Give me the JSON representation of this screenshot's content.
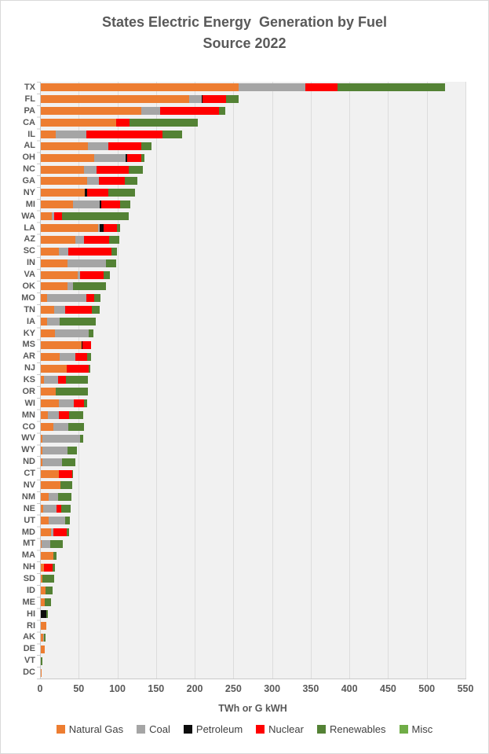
{
  "title_lines": "States Electric Energy  Generation by Fuel\nSource 2022",
  "colors": {
    "text": "#595959",
    "plot_background": "#f1f1f1",
    "gridline": "#dcdcdc",
    "axis_line": "#c9c9c9"
  },
  "chart_data": {
    "type": "bar",
    "orientation": "horizontal",
    "stacked": true,
    "title": "States Electric Energy  Generation by Fuel Source 2022",
    "xlabel": "TWh or G kWH",
    "ylabel": "",
    "xlim": [
      0,
      550
    ],
    "x_ticks": [
      0,
      50,
      100,
      150,
      200,
      250,
      300,
      350,
      400,
      450,
      500,
      550
    ],
    "grid": true,
    "legend_position": "bottom",
    "categories": [
      "TX",
      "FL",
      "PA",
      "CA",
      "IL",
      "AL",
      "OH",
      "NC",
      "GA",
      "NY",
      "MI",
      "WA",
      "LA",
      "AZ",
      "SC",
      "IN",
      "VA",
      "OK",
      "MO",
      "TN",
      "IA",
      "KY",
      "MS",
      "AR",
      "NJ",
      "KS",
      "OR",
      "WI",
      "MN",
      "CO",
      "WV",
      "WY",
      "ND",
      "CT",
      "NV",
      "NM",
      "NE",
      "UT",
      "MD",
      "MT",
      "MA",
      "NH",
      "SD",
      "ID",
      "ME",
      "HI",
      "RI",
      "AK",
      "DE",
      "VT",
      "DC"
    ],
    "series": [
      {
        "name": "Natural Gas",
        "color": "#ED7D31",
        "values": [
          256,
          192,
          130,
          97,
          19,
          61,
          69,
          56,
          60,
          57,
          42,
          14,
          74,
          45,
          23,
          34,
          48,
          34,
          8,
          17,
          8,
          18,
          53,
          24,
          33,
          4,
          19,
          23,
          9,
          16,
          2,
          2,
          2,
          23,
          25,
          10,
          3,
          10,
          13,
          1,
          16,
          4,
          2,
          6,
          5,
          0,
          7,
          3,
          5,
          0,
          0.1
        ]
      },
      {
        "name": "Coal",
        "color": "#A5A5A5",
        "values": [
          86,
          16,
          24,
          0,
          40,
          26,
          41,
          16,
          15,
          0,
          34,
          3,
          2,
          11,
          13,
          50,
          3,
          8,
          51,
          14,
          16,
          44,
          0,
          21,
          0,
          18,
          0,
          20,
          14,
          20,
          49,
          33,
          25,
          0,
          0,
          12,
          17,
          21,
          3,
          11,
          0,
          0,
          0,
          0,
          0,
          0,
          0,
          1,
          0,
          0,
          0
        ]
      },
      {
        "name": "Petroleum",
        "color": "#0D0D0D",
        "values": [
          0,
          1,
          0,
          0,
          0,
          0,
          2,
          0,
          0,
          3,
          2,
          0,
          5,
          0,
          0,
          0,
          0,
          0,
          0,
          0,
          0,
          0,
          1,
          0,
          0,
          0,
          0,
          0,
          0,
          0,
          0,
          0,
          0,
          0,
          0,
          0,
          0,
          0,
          0,
          0,
          0,
          0,
          0,
          0,
          0,
          7,
          0,
          0,
          0,
          0,
          0
        ]
      },
      {
        "name": "Nuclear",
        "color": "#FF0000",
        "values": [
          42,
          30,
          76,
          18,
          98,
          43,
          18,
          42,
          34,
          27,
          25,
          10,
          17,
          32,
          55,
          0,
          30,
          0,
          10,
          35,
          0,
          0,
          11,
          15,
          29,
          10,
          0,
          13,
          14,
          0,
          0,
          0,
          0,
          18,
          0,
          0,
          6,
          0,
          17,
          0,
          0,
          11,
          0,
          0,
          0,
          0,
          0,
          0,
          0,
          0,
          0
        ]
      },
      {
        "name": "Renewables",
        "color": "#548235",
        "values": [
          139,
          17,
          9,
          88,
          26,
          13,
          4,
          18,
          16,
          35,
          13,
          87,
          4,
          14,
          7,
          13,
          8,
          42,
          8,
          10,
          47,
          6,
          0,
          5,
          2,
          29,
          42,
          4,
          18,
          20,
          4,
          12,
          18,
          1,
          16,
          18,
          13,
          7,
          4,
          16,
          4,
          3,
          15,
          9,
          8,
          2,
          0,
          2,
          0,
          2,
          0
        ]
      },
      {
        "name": "Misc",
        "color": "#70AD47",
        "values": [
          0,
          0,
          0,
          0,
          0,
          0,
          0,
          0,
          0,
          0,
          0,
          0,
          0,
          0,
          0,
          0,
          0,
          0,
          0,
          0,
          0,
          0,
          0,
          0,
          0,
          0,
          0,
          0,
          0,
          0,
          0,
          0,
          0,
          0,
          0,
          0,
          0,
          0,
          0,
          0,
          0,
          0,
          0,
          0,
          0,
          0,
          0,
          0,
          0,
          0,
          0
        ]
      }
    ]
  }
}
